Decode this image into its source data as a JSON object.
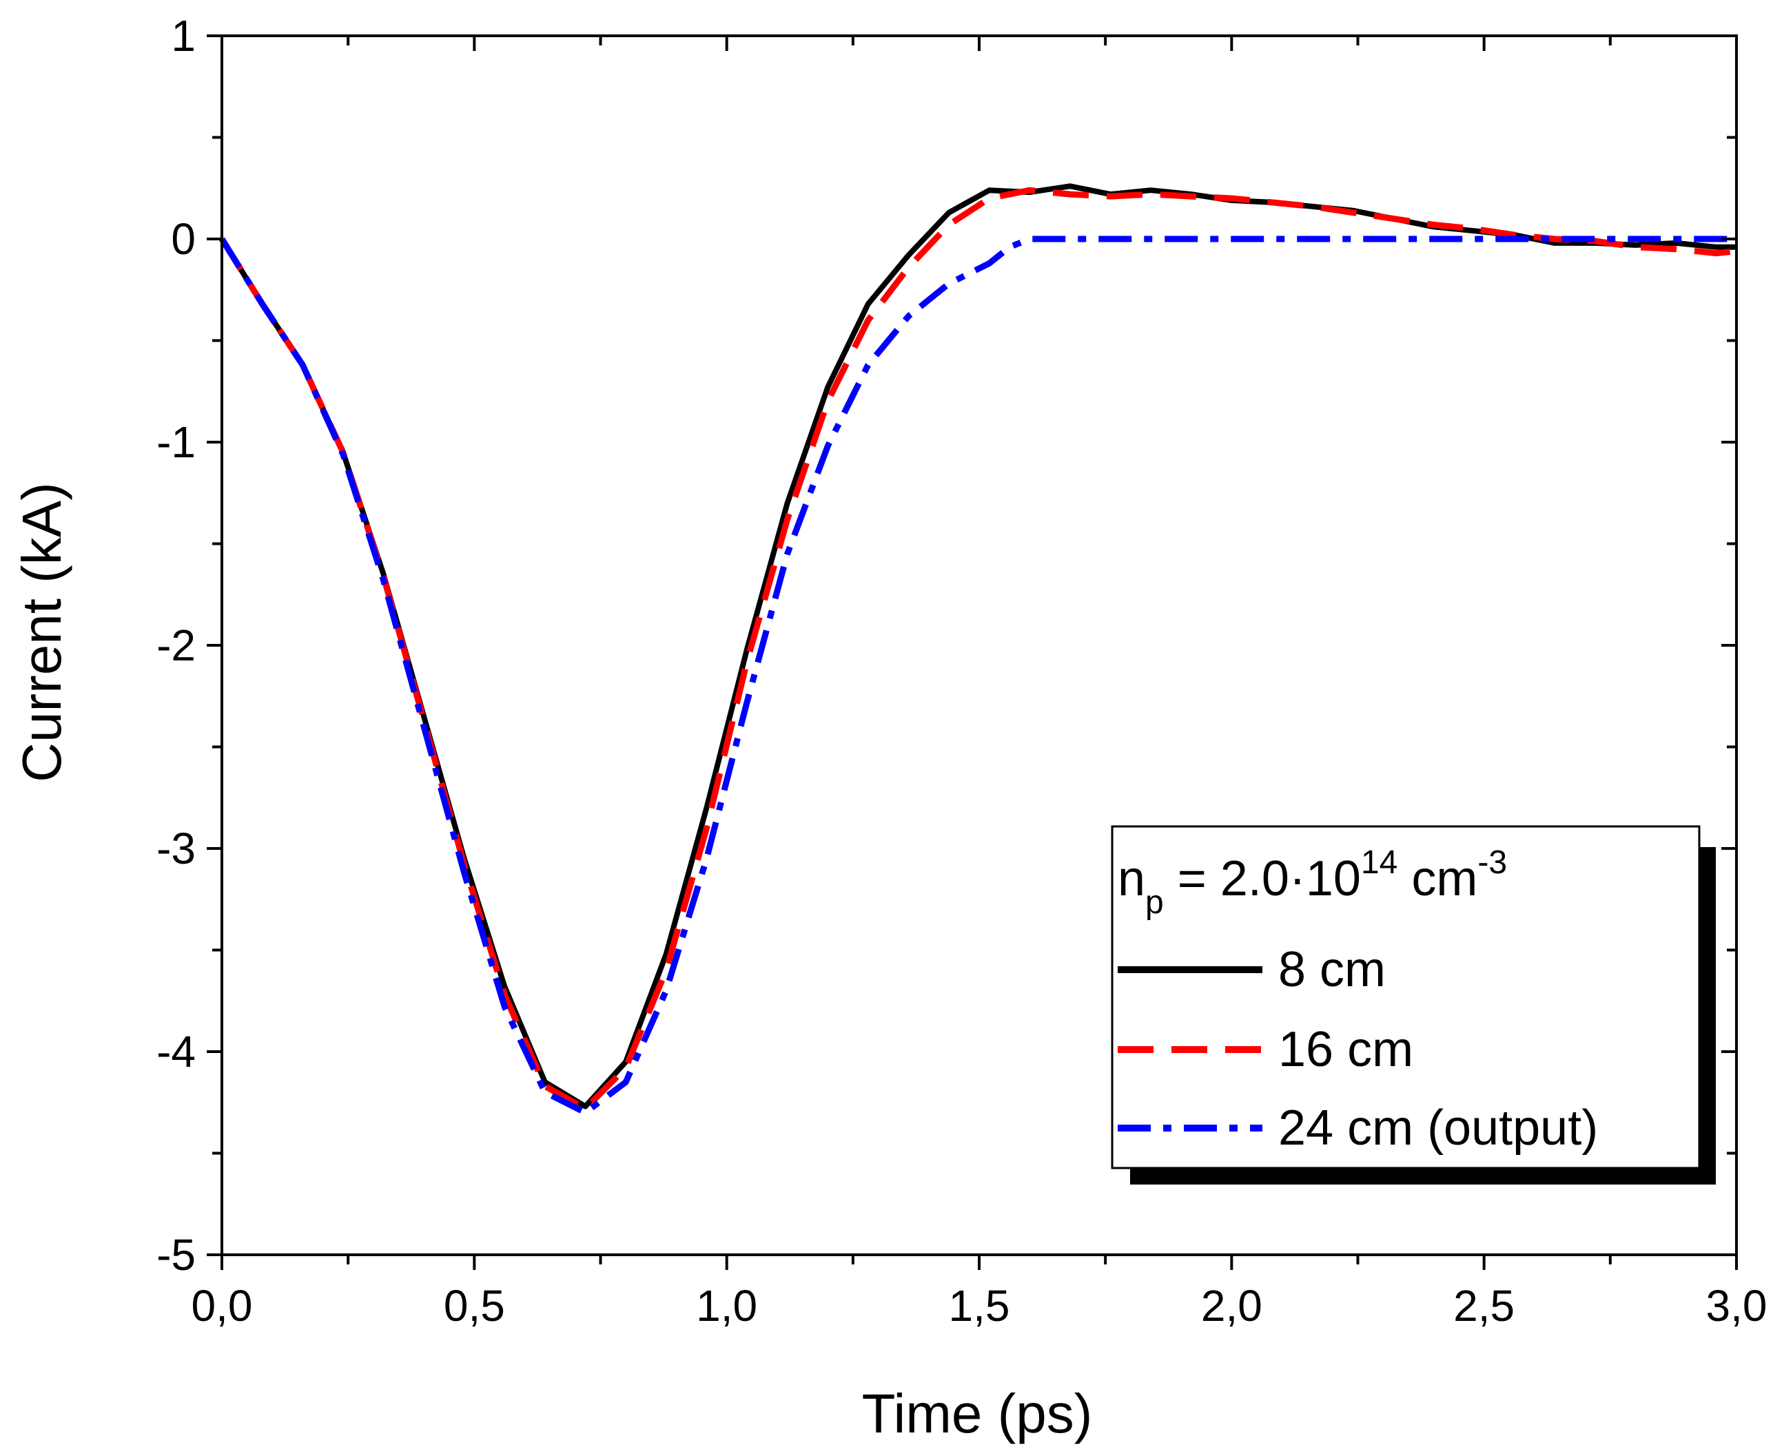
{
  "chart_data": {
    "type": "line",
    "title": "",
    "xlabel": "Time (ps)",
    "ylabel": "Current (kA)",
    "xlim": [
      0,
      3.0
    ],
    "ylim": [
      -5,
      1
    ],
    "x_ticks": [
      0.0,
      0.5,
      1.0,
      1.5,
      2.0,
      2.5,
      3.0
    ],
    "x_tick_labels": [
      "0,0",
      "0,5",
      "1,0",
      "1,5",
      "2,0",
      "2,5",
      "3,0"
    ],
    "y_ticks": [
      -5,
      -4,
      -3,
      -2,
      -1,
      0,
      1
    ],
    "y_tick_labels": [
      "-5",
      "-4",
      "-3",
      "-2",
      "-1",
      "0",
      "1"
    ],
    "grid": false,
    "legend": {
      "position": "bottom-right",
      "header_main": "n",
      "header_sub": "p",
      "header_mid": " = 2.0·10",
      "header_sup": "14",
      "header_unit": " cm",
      "header_unit_sup": "-3"
    },
    "series": [
      {
        "name": "8 cm",
        "color": "#000000",
        "style": "solid",
        "x": [
          0.0,
          0.08,
          0.16,
          0.24,
          0.32,
          0.4,
          0.48,
          0.56,
          0.64,
          0.72,
          0.8,
          0.88,
          0.96,
          1.04,
          1.12,
          1.2,
          1.28,
          1.36,
          1.44,
          1.52,
          1.6,
          1.68,
          1.76,
          1.84,
          1.92,
          2.0,
          2.08,
          2.16,
          2.24,
          2.32,
          2.4,
          2.48,
          2.56,
          2.64,
          2.72,
          2.8,
          2.88,
          2.96,
          3.0
        ],
        "y": [
          0.0,
          -0.32,
          -0.62,
          -1.05,
          -1.65,
          -2.35,
          -3.05,
          -3.68,
          -4.15,
          -4.27,
          -4.05,
          -3.52,
          -2.8,
          -2.02,
          -1.3,
          -0.73,
          -0.32,
          -0.08,
          0.13,
          0.24,
          0.23,
          0.26,
          0.22,
          0.24,
          0.22,
          0.19,
          0.18,
          0.16,
          0.14,
          0.1,
          0.06,
          0.04,
          0.02,
          -0.02,
          -0.02,
          -0.03,
          -0.02,
          -0.04,
          -0.04
        ]
      },
      {
        "name": "16 cm",
        "color": "#ff0000",
        "style": "dashed",
        "x": [
          0.0,
          0.08,
          0.16,
          0.24,
          0.32,
          0.4,
          0.48,
          0.56,
          0.64,
          0.72,
          0.8,
          0.88,
          0.96,
          1.04,
          1.12,
          1.2,
          1.28,
          1.36,
          1.44,
          1.52,
          1.6,
          1.68,
          1.76,
          1.84,
          1.92,
          2.0,
          2.08,
          2.16,
          2.24,
          2.32,
          2.4,
          2.48,
          2.56,
          2.64,
          2.72,
          2.8,
          2.88,
          2.96,
          3.0
        ],
        "y": [
          0.0,
          -0.32,
          -0.62,
          -1.05,
          -1.66,
          -2.37,
          -3.08,
          -3.72,
          -4.17,
          -4.28,
          -4.08,
          -3.6,
          -2.9,
          -2.08,
          -1.38,
          -0.8,
          -0.4,
          -0.14,
          0.07,
          0.2,
          0.24,
          0.22,
          0.21,
          0.22,
          0.21,
          0.2,
          0.18,
          0.16,
          0.13,
          0.1,
          0.07,
          0.05,
          0.02,
          0.0,
          -0.01,
          -0.04,
          -0.05,
          -0.07,
          -0.06
        ]
      },
      {
        "name": "24 cm (output)",
        "color": "#0000ff",
        "style": "dashdot",
        "x": [
          0.0,
          0.08,
          0.16,
          0.24,
          0.32,
          0.4,
          0.48,
          0.56,
          0.64,
          0.72,
          0.8,
          0.88,
          0.96,
          1.04,
          1.12,
          1.2,
          1.28,
          1.36,
          1.44,
          1.52,
          1.56,
          1.6,
          1.8,
          2.0,
          2.2,
          2.4,
          2.6,
          2.8,
          3.0
        ],
        "y": [
          0.0,
          -0.32,
          -0.62,
          -1.06,
          -1.68,
          -2.4,
          -3.12,
          -3.78,
          -4.2,
          -4.3,
          -4.15,
          -3.7,
          -3.05,
          -2.28,
          -1.55,
          -1.02,
          -0.62,
          -0.38,
          -0.22,
          -0.12,
          -0.04,
          0.0,
          0.0,
          0.0,
          0.0,
          0.0,
          0.0,
          0.0,
          0.0
        ]
      }
    ]
  }
}
